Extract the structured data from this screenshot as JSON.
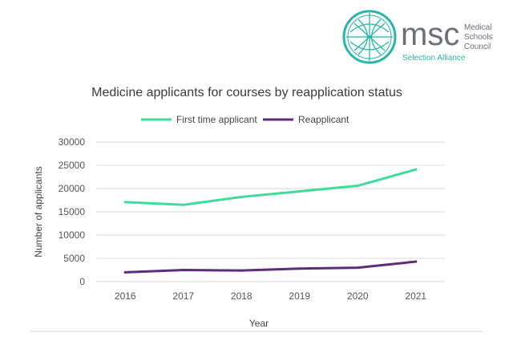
{
  "logo": {
    "acronym": "msc",
    "org_line1": "Medical",
    "org_line2": "Schools",
    "org_line3": "Council",
    "tagline": "Selection Alliance",
    "icon": "circular-network-emblem",
    "color": "#2bb5a6"
  },
  "chart_data": {
    "type": "line",
    "title": "Medicine applicants for courses by reapplication status",
    "xlabel": "Year",
    "ylabel": "Number of applicants",
    "categories": [
      "2016",
      "2017",
      "2018",
      "2019",
      "2020",
      "2021"
    ],
    "ylim": [
      0,
      30000
    ],
    "yticks": [
      0,
      5000,
      10000,
      15000,
      20000,
      25000,
      30000
    ],
    "grid": true,
    "legend": "top",
    "series": [
      {
        "name": "First time applicant",
        "color": "#3ddc97",
        "values": [
          17100,
          16500,
          18200,
          19400,
          20600,
          24100
        ]
      },
      {
        "name": "Reapplicant",
        "color": "#5e2d79",
        "values": [
          2000,
          2500,
          2400,
          2800,
          3000,
          4300
        ]
      }
    ]
  }
}
